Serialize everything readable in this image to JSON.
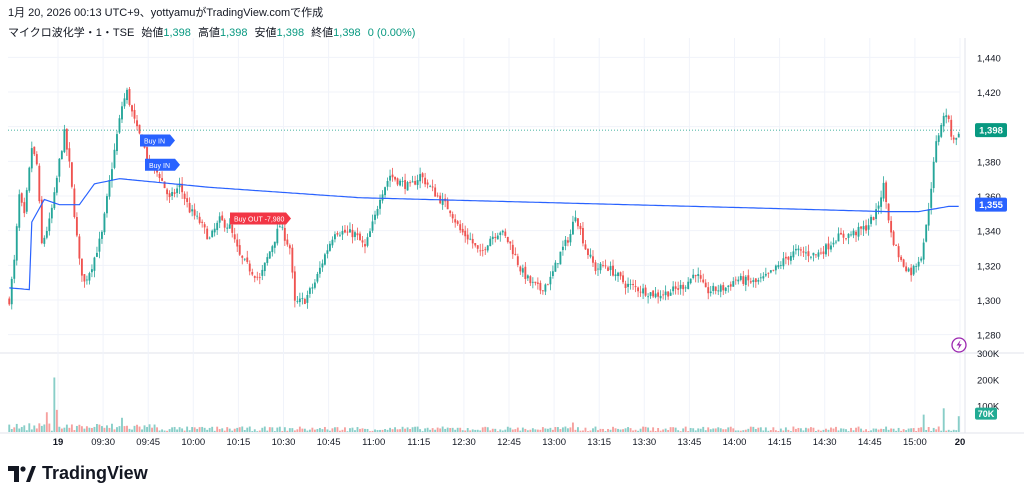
{
  "header": {
    "timestamp_line": "1月 20, 2026 00:13 UTC+9、yottyamuがTradingView.comで作成",
    "symbol": "マイクロ波化学・1・TSE",
    "open_label": "始値",
    "open_value": "1,398",
    "high_label": "高値",
    "high_value": "1,398",
    "low_label": "安値",
    "low_value": "1,398",
    "close_label": "終値",
    "close_value": "1,398",
    "change_value": "0 (0.00%)"
  },
  "brand": {
    "name": "TradingView",
    "icon": "tradingview-logo-icon"
  },
  "colors": {
    "up": "#089981",
    "up_candle": "#26a69a",
    "down": "#f23645",
    "down_candle": "#ef5350",
    "ma_line": "#2962ff",
    "grid": "#f0f3fa",
    "axis_text": "#131722",
    "buy_label": "#2962ff",
    "sell_label": "#f23645"
  },
  "chart_data": {
    "type": "candlestick",
    "interval": "1 minute",
    "y_range": [
      1270,
      1450
    ],
    "y_ticks": [
      1280,
      1300,
      1320,
      1340,
      1360,
      1380,
      1400,
      1420,
      1440
    ],
    "y_tick_labels": [
      "1,280",
      "1,300",
      "1,320",
      "1,340",
      "1,360",
      "1,380",
      "1,400",
      "1,420",
      "1,440"
    ],
    "x_labels": [
      "19",
      "09:30",
      "09:45",
      "10:00",
      "10:15",
      "10:30",
      "10:45",
      "11:00",
      "11:15",
      "12:30",
      "12:45",
      "13:00",
      "13:15",
      "13:30",
      "13:45",
      "14:00",
      "14:15",
      "14:30",
      "14:45",
      "15:00",
      "20"
    ],
    "price_markers": [
      {
        "label": "1,398",
        "value": 1398,
        "color": "#089981"
      },
      {
        "label": "1,355",
        "value": 1355,
        "color": "#2962ff"
      }
    ],
    "volume_axis": {
      "range": [
        0,
        300000
      ],
      "ticks": [
        300000,
        200000,
        100000
      ],
      "tick_labels": [
        "300K",
        "200K",
        "100K"
      ],
      "marker": {
        "label": "70K",
        "value": 70000
      }
    },
    "annotations": [
      {
        "text": "Buy IN",
        "kind": "buy",
        "price": 1392
      },
      {
        "text": "Buy IN",
        "kind": "buy",
        "price": 1378
      },
      {
        "text": "Buy OUT -7,980",
        "kind": "sell",
        "price": 1347
      }
    ],
    "ma_anchors": [
      [
        0,
        1307
      ],
      [
        8,
        1306
      ],
      [
        9,
        1345
      ],
      [
        14,
        1358
      ],
      [
        20,
        1355
      ],
      [
        28,
        1355
      ],
      [
        34,
        1367
      ],
      [
        44,
        1370
      ],
      [
        80,
        1365
      ],
      [
        140,
        1359
      ],
      [
        220,
        1356
      ],
      [
        300,
        1353
      ],
      [
        350,
        1351
      ],
      [
        363,
        1351
      ],
      [
        375,
        1354
      ]
    ],
    "price_anchors": [
      [
        0,
        1300
      ],
      [
        2,
        1322
      ],
      [
        4,
        1360
      ],
      [
        6,
        1348
      ],
      [
        9,
        1388
      ],
      [
        11,
        1378
      ],
      [
        13,
        1332
      ],
      [
        16,
        1345
      ],
      [
        18,
        1360
      ],
      [
        20,
        1380
      ],
      [
        22,
        1396
      ],
      [
        24,
        1378
      ],
      [
        26,
        1350
      ],
      [
        28,
        1322
      ],
      [
        30,
        1310
      ],
      [
        33,
        1320
      ],
      [
        37,
        1338
      ],
      [
        40,
        1368
      ],
      [
        43,
        1395
      ],
      [
        45,
        1412
      ],
      [
        47,
        1420
      ],
      [
        49,
        1408
      ],
      [
        51,
        1398
      ],
      [
        53,
        1392
      ],
      [
        56,
        1378
      ],
      [
        60,
        1372
      ],
      [
        64,
        1358
      ],
      [
        68,
        1366
      ],
      [
        72,
        1352
      ],
      [
        76,
        1345
      ],
      [
        80,
        1335
      ],
      [
        84,
        1346
      ],
      [
        88,
        1342
      ],
      [
        92,
        1325
      ],
      [
        96,
        1318
      ],
      [
        100,
        1312
      ],
      [
        104,
        1328
      ],
      [
        108,
        1343
      ],
      [
        112,
        1330
      ],
      [
        114,
        1298
      ],
      [
        118,
        1300
      ],
      [
        122,
        1310
      ],
      [
        126,
        1326
      ],
      [
        130,
        1340
      ],
      [
        134,
        1339
      ],
      [
        138,
        1338
      ],
      [
        142,
        1330
      ],
      [
        146,
        1348
      ],
      [
        148,
        1360
      ],
      [
        152,
        1372
      ],
      [
        156,
        1368
      ],
      [
        160,
        1365
      ],
      [
        164,
        1372
      ],
      [
        168,
        1365
      ],
      [
        172,
        1358
      ],
      [
        176,
        1352
      ],
      [
        180,
        1340
      ],
      [
        184,
        1335
      ],
      [
        188,
        1326
      ],
      [
        192,
        1336
      ],
      [
        196,
        1340
      ],
      [
        200,
        1332
      ],
      [
        204,
        1318
      ],
      [
        208,
        1310
      ],
      [
        212,
        1306
      ],
      [
        216,
        1312
      ],
      [
        220,
        1327
      ],
      [
        224,
        1338
      ],
      [
        226,
        1350
      ],
      [
        230,
        1330
      ],
      [
        234,
        1318
      ],
      [
        238,
        1320
      ],
      [
        242,
        1315
      ],
      [
        246,
        1309
      ],
      [
        250,
        1307
      ],
      [
        254,
        1305
      ],
      [
        258,
        1303
      ],
      [
        262,
        1304
      ],
      [
        266,
        1306
      ],
      [
        270,
        1309
      ],
      [
        274,
        1316
      ],
      [
        278,
        1305
      ],
      [
        282,
        1306
      ],
      [
        286,
        1307
      ],
      [
        290,
        1312
      ],
      [
        294,
        1311
      ],
      [
        298,
        1310
      ],
      [
        302,
        1313
      ],
      [
        306,
        1318
      ],
      [
        310,
        1324
      ],
      [
        314,
        1328
      ],
      [
        318,
        1327
      ],
      [
        322,
        1326
      ],
      [
        326,
        1330
      ],
      [
        330,
        1336
      ],
      [
        334,
        1337
      ],
      [
        338,
        1339
      ],
      [
        342,
        1342
      ],
      [
        346,
        1350
      ],
      [
        349,
        1366
      ],
      [
        352,
        1338
      ],
      [
        356,
        1322
      ],
      [
        360,
        1316
      ],
      [
        364,
        1326
      ],
      [
        366,
        1342
      ],
      [
        368,
        1366
      ],
      [
        370,
        1390
      ],
      [
        372,
        1402
      ],
      [
        374,
        1408
      ],
      [
        376,
        1396
      ],
      [
        378,
        1392
      ],
      [
        379,
        1398
      ]
    ],
    "volume_spikes": [
      [
        18,
        0.69
      ],
      [
        15,
        0.25
      ],
      [
        19,
        0.28
      ],
      [
        45,
        0.18
      ],
      [
        225,
        0.12
      ],
      [
        365,
        0.22
      ],
      [
        373,
        0.3
      ],
      [
        379,
        0.2
      ]
    ]
  }
}
